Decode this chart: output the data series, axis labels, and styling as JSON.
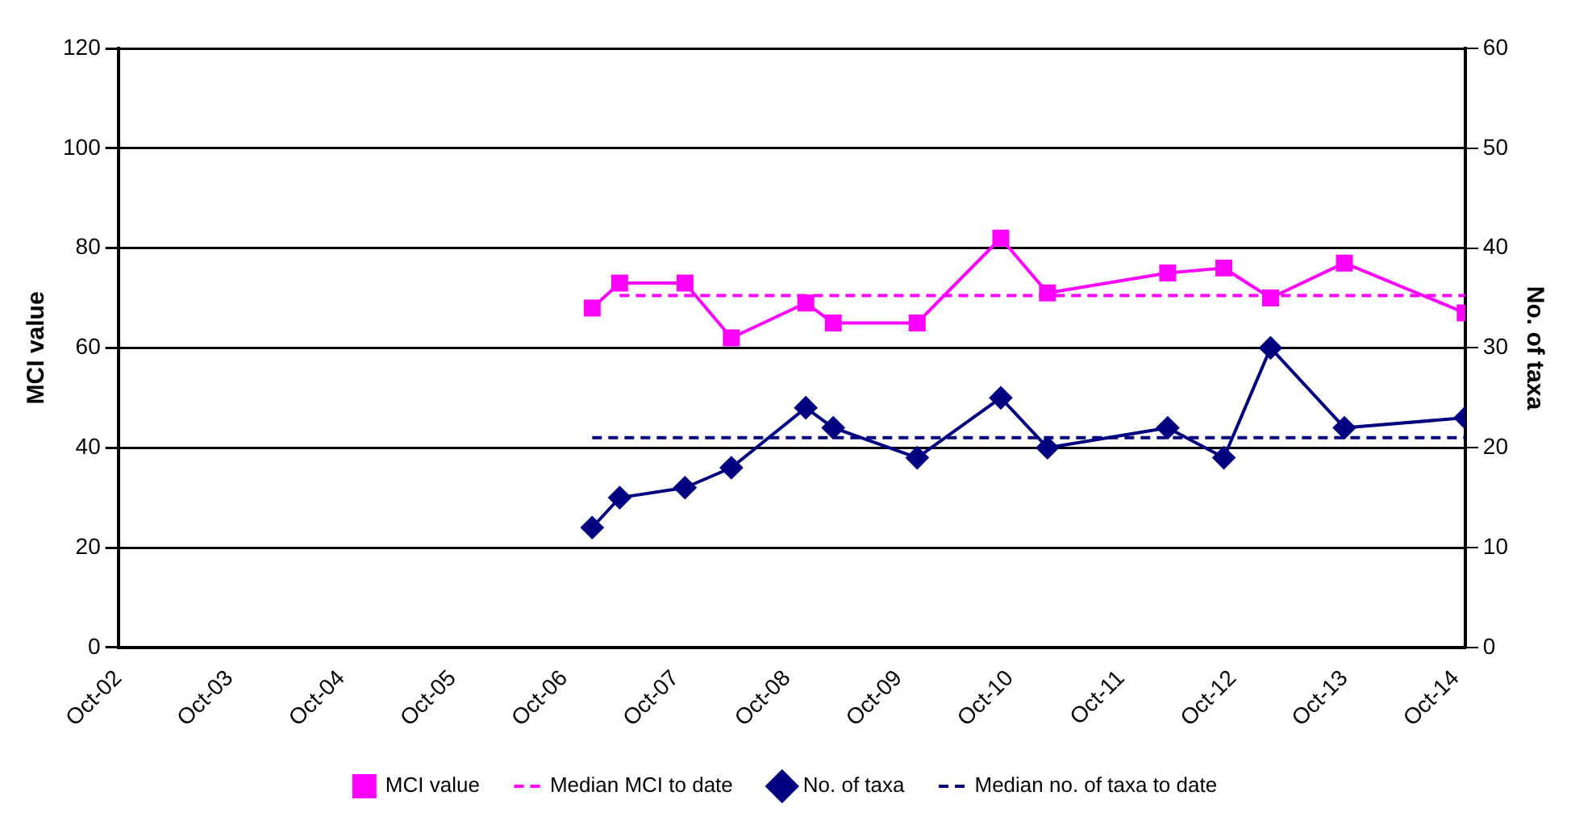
{
  "chart_data": {
    "type": "line",
    "ylabel": "MCI value",
    "y2label": "No. of taxa",
    "xlim": [
      "2002-10",
      "2014-11"
    ],
    "xticks": [
      {
        "value": "2002-10",
        "label": "Oct-02"
      },
      {
        "value": "2003-10",
        "label": "Oct-03"
      },
      {
        "value": "2004-10",
        "label": "Oct-04"
      },
      {
        "value": "2005-10",
        "label": "Oct-05"
      },
      {
        "value": "2006-10",
        "label": "Oct-06"
      },
      {
        "value": "2007-10",
        "label": "Oct-07"
      },
      {
        "value": "2008-10",
        "label": "Oct-08"
      },
      {
        "value": "2009-10",
        "label": "Oct-09"
      },
      {
        "value": "2010-10",
        "label": "Oct-10"
      },
      {
        "value": "2011-10",
        "label": "Oct-11"
      },
      {
        "value": "2012-10",
        "label": "Oct-12"
      },
      {
        "value": "2013-10",
        "label": "Oct-13"
      },
      {
        "value": "2014-10",
        "label": "Oct-14"
      }
    ],
    "ylim": [
      0,
      120
    ],
    "yticks": [
      0,
      20,
      40,
      60,
      80,
      100,
      120
    ],
    "y2lim": [
      0,
      60
    ],
    "y2ticks": [
      0,
      10,
      20,
      30,
      40,
      50,
      60
    ],
    "grid": "y",
    "legend": "bottom",
    "series": [
      {
        "name": "MCI value",
        "color": "#ff00ff",
        "marker": "square",
        "x": [
          "2007-01",
          "2007-04",
          "2007-11",
          "2008-04",
          "2008-12",
          "2009-03",
          "2009-12",
          "2010-09",
          "2011-02",
          "2012-03",
          "2012-09",
          "2013-02",
          "2013-10",
          "2014-11"
        ],
        "values": [
          68,
          73,
          73,
          62,
          69,
          65,
          65,
          82,
          71,
          75,
          76,
          70,
          77,
          67
        ]
      },
      {
        "name": "Median MCI to date",
        "color": "#ff00ff",
        "marker": "none",
        "line_style": "dashed",
        "x": [
          "2007-04",
          "2014-11"
        ],
        "values": [
          70.5,
          70.5
        ]
      },
      {
        "name": "No. of taxa",
        "color": "#000080",
        "marker": "diamond",
        "axis": "y2",
        "x": [
          "2007-01",
          "2007-04",
          "2007-11",
          "2008-04",
          "2008-12",
          "2009-03",
          "2009-12",
          "2010-09",
          "2011-02",
          "2012-03",
          "2012-09",
          "2013-02",
          "2013-10",
          "2014-11"
        ],
        "values": [
          12,
          15,
          16,
          18,
          24,
          22,
          19,
          25,
          20,
          22,
          19,
          30,
          22,
          23
        ]
      },
      {
        "name": "Median no. of taxa to date",
        "color": "#000080",
        "marker": "none",
        "line_style": "dashed",
        "axis": "y2",
        "x": [
          "2007-01",
          "2014-11"
        ],
        "values": [
          21,
          21
        ]
      }
    ]
  }
}
